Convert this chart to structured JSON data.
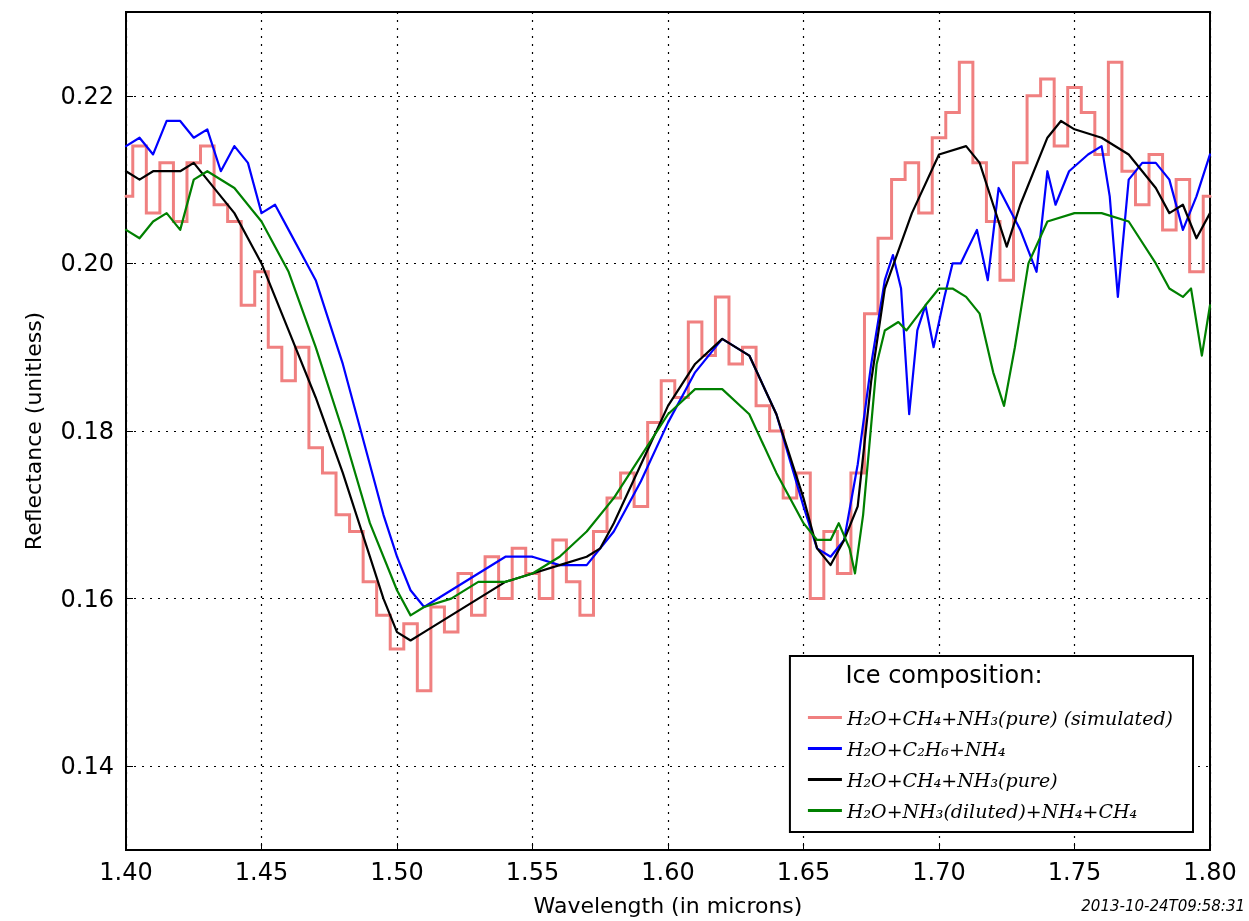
{
  "chart_data": {
    "type": "line",
    "xlabel": "Wavelength (in microns)",
    "ylabel": "Reflectance (unitless)",
    "legend_title": "Ice composition:",
    "annotations": [
      "2013-10-24T09:58:31"
    ],
    "xlim": [
      1.4,
      1.8
    ],
    "xticks": [
      {
        "value": 1.4,
        "label": "1.40"
      },
      {
        "value": 1.45,
        "label": "1.45"
      },
      {
        "value": 1.5,
        "label": "1.50"
      },
      {
        "value": 1.55,
        "label": "1.55"
      },
      {
        "value": 1.6,
        "label": "1.60"
      },
      {
        "value": 1.65,
        "label": "1.65"
      },
      {
        "value": 1.7,
        "label": "1.70"
      },
      {
        "value": 1.75,
        "label": "1.75"
      },
      {
        "value": 1.8,
        "label": "1.80"
      }
    ],
    "ylim": [
      0.13,
      0.23
    ],
    "yticks": [
      0.14,
      0.16,
      0.18,
      {
        "value": 0.2,
        "label": "0.20"
      },
      0.22
    ],
    "grid": true,
    "legend": "bottom right",
    "marker": "none",
    "line_style": "solid",
    "series": [
      {
        "name": "H₂O+CH₄+NH₃(pure) (simulated)",
        "type": "step",
        "color": "#f08080",
        "x": [
          1.4,
          1.405,
          1.41,
          1.415,
          1.42,
          1.425,
          1.43,
          1.435,
          1.44,
          1.445,
          1.45,
          1.455,
          1.46,
          1.465,
          1.47,
          1.475,
          1.48,
          1.485,
          1.49,
          1.495,
          1.5,
          1.505,
          1.51,
          1.515,
          1.52,
          1.525,
          1.53,
          1.535,
          1.54,
          1.545,
          1.55,
          1.555,
          1.56,
          1.565,
          1.57,
          1.575,
          1.58,
          1.585,
          1.59,
          1.595,
          1.6,
          1.605,
          1.61,
          1.615,
          1.62,
          1.625,
          1.63,
          1.635,
          1.64,
          1.645,
          1.65,
          1.655,
          1.66,
          1.665,
          1.67,
          1.675,
          1.68,
          1.685,
          1.69,
          1.695,
          1.7,
          1.705,
          1.71,
          1.715,
          1.72,
          1.725,
          1.73,
          1.735,
          1.74,
          1.745,
          1.75,
          1.755,
          1.76,
          1.765,
          1.77,
          1.775,
          1.78,
          1.785,
          1.79,
          1.795,
          1.8
        ],
        "values": [
          0.208,
          0.214,
          0.206,
          0.212,
          0.205,
          0.212,
          0.214,
          0.207,
          0.205,
          0.195,
          0.199,
          0.19,
          0.186,
          0.19,
          0.178,
          0.175,
          0.17,
          0.168,
          0.162,
          0.158,
          0.154,
          0.157,
          0.149,
          0.159,
          0.156,
          0.163,
          0.158,
          0.165,
          0.16,
          0.166,
          0.163,
          0.16,
          0.167,
          0.162,
          0.158,
          0.168,
          0.172,
          0.175,
          0.171,
          0.181,
          0.186,
          0.184,
          0.193,
          0.189,
          0.196,
          0.188,
          0.19,
          0.183,
          0.18,
          0.172,
          0.175,
          0.16,
          0.168,
          0.163,
          0.175,
          0.194,
          0.203,
          0.21,
          0.212,
          0.206,
          0.215,
          0.218,
          0.224,
          0.212,
          0.205,
          0.198,
          0.212,
          0.22,
          0.222,
          0.214,
          0.221,
          0.218,
          0.213,
          0.224,
          0.211,
          0.207,
          0.213,
          0.204,
          0.21,
          0.199,
          0.208
        ]
      },
      {
        "name": "H₂O+C₂H₆+NH₄",
        "color": "#0000ff",
        "x": [
          1.4,
          1.405,
          1.41,
          1.415,
          1.42,
          1.425,
          1.43,
          1.435,
          1.44,
          1.445,
          1.45,
          1.455,
          1.46,
          1.47,
          1.48,
          1.49,
          1.495,
          1.5,
          1.505,
          1.51,
          1.52,
          1.53,
          1.54,
          1.55,
          1.56,
          1.57,
          1.58,
          1.59,
          1.6,
          1.61,
          1.62,
          1.63,
          1.64,
          1.65,
          1.655,
          1.66,
          1.665,
          1.67,
          1.675,
          1.68,
          1.683,
          1.686,
          1.689,
          1.692,
          1.695,
          1.698,
          1.702,
          1.705,
          1.708,
          1.714,
          1.718,
          1.722,
          1.73,
          1.736,
          1.74,
          1.743,
          1.748,
          1.755,
          1.76,
          1.763,
          1.766,
          1.77,
          1.775,
          1.78,
          1.785,
          1.79,
          1.795,
          1.8
        ],
        "values": [
          0.214,
          0.215,
          0.213,
          0.217,
          0.217,
          0.215,
          0.216,
          0.211,
          0.214,
          0.212,
          0.206,
          0.207,
          0.204,
          0.198,
          0.188,
          0.176,
          0.17,
          0.165,
          0.161,
          0.159,
          0.161,
          0.163,
          0.165,
          0.165,
          0.164,
          0.164,
          0.168,
          0.174,
          0.181,
          0.187,
          0.191,
          0.189,
          0.182,
          0.171,
          0.166,
          0.165,
          0.167,
          0.176,
          0.188,
          0.198,
          0.201,
          0.197,
          0.182,
          0.192,
          0.195,
          0.19,
          0.196,
          0.2,
          0.2,
          0.204,
          0.198,
          0.209,
          0.204,
          0.199,
          0.211,
          0.207,
          0.211,
          0.213,
          0.214,
          0.208,
          0.196,
          0.21,
          0.212,
          0.212,
          0.21,
          0.204,
          0.208,
          0.213
        ]
      },
      {
        "name": "H₂O+CH₄+NH₃(pure)",
        "color": "#000000",
        "x": [
          1.4,
          1.405,
          1.41,
          1.42,
          1.425,
          1.43,
          1.44,
          1.45,
          1.46,
          1.47,
          1.48,
          1.49,
          1.495,
          1.5,
          1.505,
          1.51,
          1.52,
          1.53,
          1.54,
          1.55,
          1.56,
          1.57,
          1.575,
          1.58,
          1.59,
          1.6,
          1.61,
          1.62,
          1.63,
          1.64,
          1.65,
          1.655,
          1.66,
          1.665,
          1.67,
          1.675,
          1.68,
          1.69,
          1.7,
          1.71,
          1.715,
          1.72,
          1.725,
          1.73,
          1.74,
          1.745,
          1.75,
          1.76,
          1.77,
          1.78,
          1.785,
          1.79,
          1.795,
          1.8
        ],
        "values": [
          0.211,
          0.21,
          0.211,
          0.211,
          0.212,
          0.21,
          0.206,
          0.2,
          0.192,
          0.184,
          0.175,
          0.165,
          0.16,
          0.156,
          0.155,
          0.156,
          0.158,
          0.16,
          0.162,
          0.163,
          0.164,
          0.165,
          0.166,
          0.169,
          0.176,
          0.183,
          0.188,
          0.191,
          0.189,
          0.182,
          0.172,
          0.166,
          0.164,
          0.167,
          0.171,
          0.186,
          0.197,
          0.206,
          0.213,
          0.214,
          0.212,
          0.207,
          0.202,
          0.207,
          0.215,
          0.217,
          0.216,
          0.215,
          0.213,
          0.209,
          0.206,
          0.207,
          0.203,
          0.206
        ]
      },
      {
        "name": "H₂O+NH₃(diluted)+NH₄+CH₄",
        "color": "#008000",
        "x": [
          1.4,
          1.405,
          1.41,
          1.415,
          1.42,
          1.425,
          1.43,
          1.44,
          1.45,
          1.46,
          1.47,
          1.48,
          1.49,
          1.5,
          1.505,
          1.51,
          1.52,
          1.53,
          1.54,
          1.55,
          1.56,
          1.57,
          1.58,
          1.59,
          1.6,
          1.61,
          1.62,
          1.63,
          1.64,
          1.65,
          1.655,
          1.66,
          1.663,
          1.667,
          1.669,
          1.672,
          1.677,
          1.68,
          1.685,
          1.688,
          1.695,
          1.7,
          1.705,
          1.71,
          1.715,
          1.72,
          1.724,
          1.728,
          1.733,
          1.74,
          1.75,
          1.76,
          1.77,
          1.78,
          1.785,
          1.79,
          1.793,
          1.795,
          1.797,
          1.8
        ],
        "values": [
          0.204,
          0.203,
          0.205,
          0.206,
          0.204,
          0.21,
          0.211,
          0.209,
          0.205,
          0.199,
          0.19,
          0.18,
          0.169,
          0.161,
          0.158,
          0.159,
          0.16,
          0.162,
          0.162,
          0.163,
          0.165,
          0.168,
          0.172,
          0.177,
          0.182,
          0.185,
          0.185,
          0.182,
          0.175,
          0.169,
          0.167,
          0.167,
          0.169,
          0.166,
          0.163,
          0.17,
          0.188,
          0.192,
          0.193,
          0.192,
          0.195,
          0.197,
          0.197,
          0.196,
          0.194,
          0.187,
          0.183,
          0.19,
          0.2,
          0.205,
          0.206,
          0.206,
          0.205,
          0.2,
          0.197,
          0.196,
          0.197,
          0.193,
          0.189,
          0.195
        ]
      }
    ]
  }
}
